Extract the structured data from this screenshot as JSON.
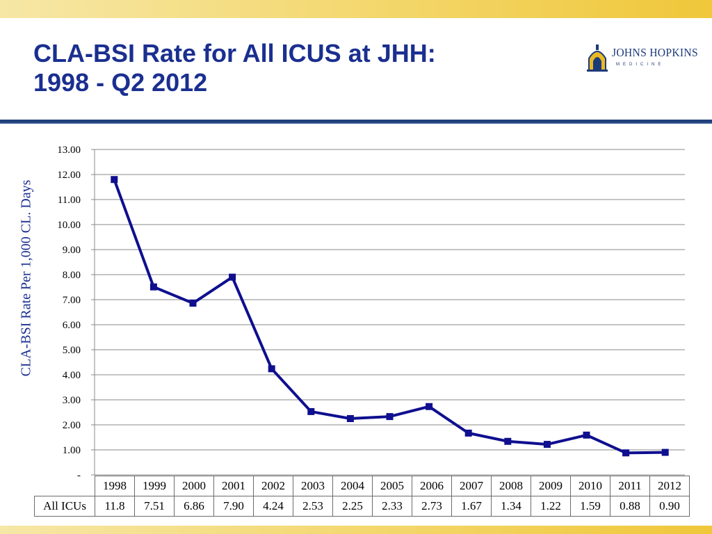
{
  "slide": {
    "title_line1": "CLA-BSI Rate for All ICUS at JHH:",
    "title_line2": "1998 - Q2 2012"
  },
  "logo": {
    "name": "JOHNS HOPKINS",
    "sub": "MEDICINE",
    "colors": {
      "navy": "#1d3a7a",
      "gold": "#e8b923"
    }
  },
  "colors": {
    "title": "#1a2f8f",
    "line": "#0f0f8f",
    "band": "#f3d565",
    "rule": "#1d3a7a"
  },
  "chart_data": {
    "type": "line",
    "title": "",
    "xlabel": "",
    "ylabel": "CLA-BSI Rate Per 1,000 CL. Days",
    "ylim": [
      0,
      13
    ],
    "grid": true,
    "legend": "none",
    "yticks": [
      "-",
      "1.00",
      "2.00",
      "3.00",
      "4.00",
      "5.00",
      "6.00",
      "7.00",
      "8.00",
      "9.00",
      "10.00",
      "11.00",
      "12.00",
      "13.00"
    ],
    "categories": [
      "1998",
      "1999",
      "2000",
      "2001",
      "2002",
      "2003",
      "2004",
      "2005",
      "2006",
      "2007",
      "2008",
      "2009",
      "2010",
      "2011",
      "2012"
    ],
    "series": [
      {
        "name": "All ICUs",
        "values": [
          11.8,
          7.51,
          6.86,
          7.9,
          4.24,
          2.53,
          2.25,
          2.33,
          2.73,
          1.67,
          1.34,
          1.22,
          1.59,
          0.88,
          0.9
        ],
        "labels": [
          "11.8",
          "7.51",
          "6.86",
          "7.90",
          "4.24",
          "2.53",
          "2.25",
          "2.33",
          "2.73",
          "1.67",
          "1.34",
          "1.22",
          "1.59",
          "0.88",
          "0.90"
        ]
      }
    ]
  }
}
